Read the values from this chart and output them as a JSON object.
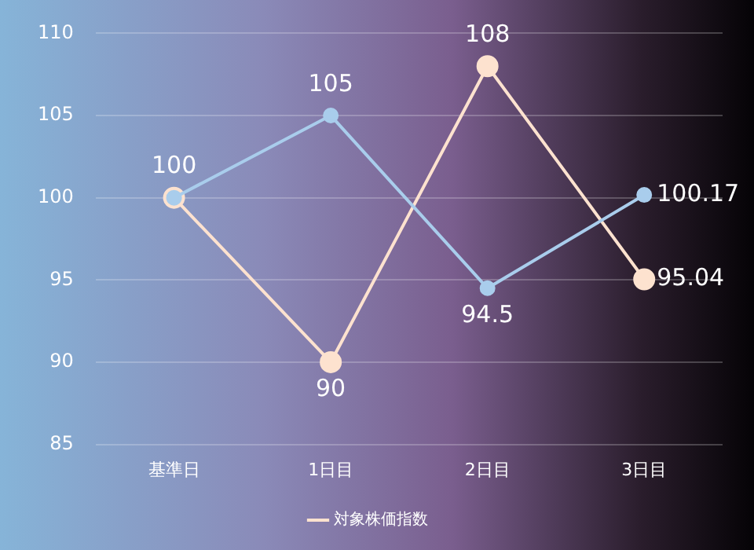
{
  "chart_data": {
    "type": "line",
    "categories": [
      "基準日",
      "1日目",
      "2日目",
      "3日目"
    ],
    "series": [
      {
        "color": "#a9cdec",
        "values": [
          100,
          105,
          94.5,
          100.17
        ],
        "value_labels": [
          "100",
          "105",
          "94.5",
          "100.17"
        ]
      },
      {
        "name": "対象株価指数",
        "color": "#fde2cf",
        "values": [
          100,
          90,
          108,
          95.04
        ],
        "value_labels": [
          null,
          "90",
          "108",
          "95.04"
        ]
      }
    ],
    "ylim": [
      85,
      110
    ],
    "yticks": [
      85,
      90,
      95,
      100,
      105,
      110
    ],
    "grid": "y",
    "legend": "bottom",
    "marker": "circle",
    "line_style": "solid"
  }
}
